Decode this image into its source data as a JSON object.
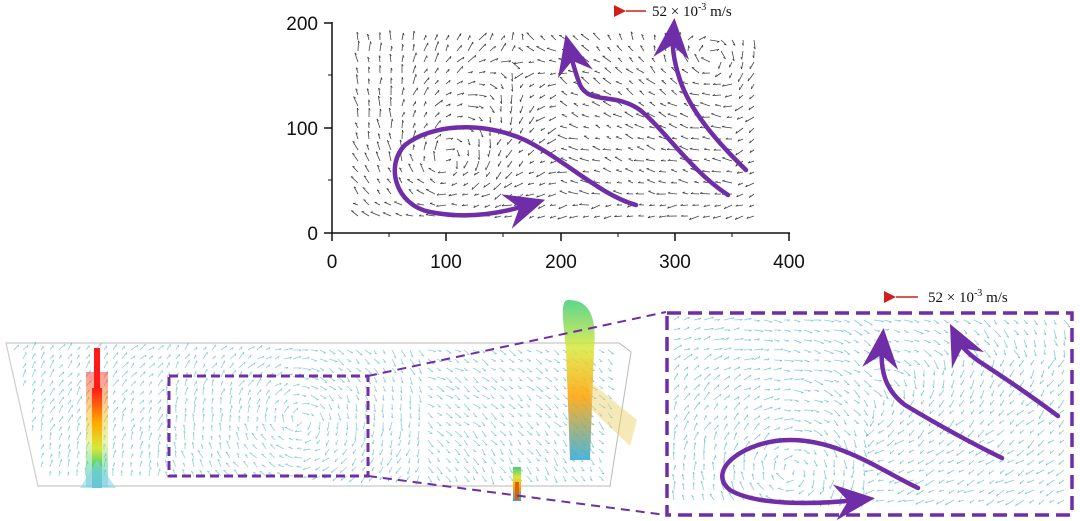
{
  "top_plot": {
    "scale_label": "52 × 10",
    "scale_exponent": "-3",
    "scale_unit": " m/s",
    "x_ticks": [
      "0",
      "100",
      "200",
      "300",
      "400"
    ],
    "y_ticks": [
      "0",
      "100",
      "200"
    ]
  },
  "bottom_inset": {
    "scale_label": "52 × 10",
    "scale_exponent": "-3",
    "scale_unit": " m/s"
  },
  "colors": {
    "flow_arrow": "#6f2da8",
    "scale_arrow": "#d11f1f",
    "vector_black": "#222222",
    "vector_blue": "#3aa7c9",
    "box_dash": "#6f2da8"
  }
}
